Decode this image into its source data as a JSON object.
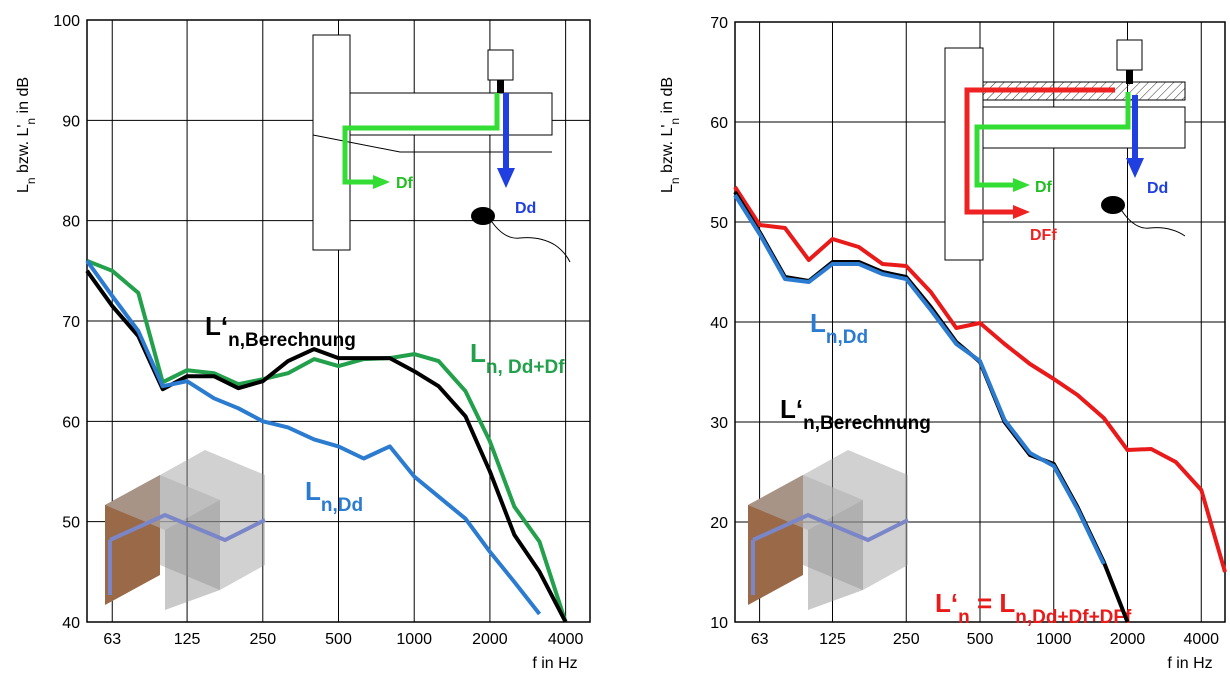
{
  "chart_data": [
    {
      "type": "line",
      "xscale": "log",
      "grid": true,
      "x": [
        50,
        63,
        80,
        100,
        125,
        160,
        200,
        250,
        315,
        400,
        500,
        630,
        800,
        1000,
        1250,
        1600,
        2000,
        2500,
        3150,
        4000
      ],
      "xlim": [
        50,
        5000
      ],
      "xticks": [
        63,
        125,
        250,
        500,
        1000,
        2000,
        4000
      ],
      "ylim": [
        40,
        100
      ],
      "yticks": [
        40,
        50,
        60,
        70,
        80,
        90,
        100
      ],
      "x_label": "f in Hz",
      "y_label": [
        "L",
        "n",
        "  bzw.  L'",
        "n",
        "  in dB"
      ],
      "series": [
        {
          "label": [
            "L",
            "n, Dd+Df"
          ],
          "color": "#22a04b",
          "values": [
            76,
            75,
            72.8,
            63.9,
            65.1,
            64.8,
            63.7,
            64.2,
            64.8,
            66.2,
            65.5,
            66.2,
            66.3,
            66.7,
            66,
            63,
            58,
            51.5,
            48,
            40
          ]
        },
        {
          "label": [
            "L‘",
            "n,Berechnung"
          ],
          "color": "#000000",
          "values": [
            75,
            71.5,
            68.5,
            63.2,
            64.5,
            64.5,
            63.3,
            64,
            66,
            67.2,
            66.3,
            66.3,
            66.3,
            65,
            63.5,
            60.5,
            55,
            48.7,
            45,
            40
          ]
        },
        {
          "label": [
            "L",
            "n,Dd"
          ],
          "color": "#2b7bd0",
          "values": [
            76,
            72.5,
            69,
            63.5,
            64,
            62.3,
            61.3,
            60,
            59.4,
            58.2,
            57.5,
            56.3,
            57.5,
            54.5,
            52.5,
            50.3,
            47,
            44,
            40.8,
            null
          ]
        }
      ],
      "inset": {
        "labels": [
          "Df",
          "Dd"
        ]
      }
    },
    {
      "type": "line",
      "xscale": "log",
      "grid": true,
      "x": [
        50,
        63,
        80,
        100,
        125,
        160,
        200,
        250,
        315,
        400,
        500,
        630,
        800,
        1000,
        1250,
        1600,
        2000,
        2500,
        3150,
        4000,
        5000
      ],
      "xlim": [
        50,
        5000
      ],
      "xticks": [
        63,
        125,
        250,
        500,
        1000,
        2000,
        4000
      ],
      "ylim": [
        10,
        70
      ],
      "yticks": [
        10,
        20,
        30,
        40,
        50,
        60,
        70
      ],
      "x_label": "f in Hz",
      "y_label": [
        "L",
        "n",
        "  bzw.  L'",
        "n",
        "  in dB"
      ],
      "series": [
        {
          "label": [
            "L‘",
            "n",
            " = L",
            "n,Dd+Df+DFf"
          ],
          "color": "#e81a1a",
          "values": [
            53.5,
            49.7,
            49.4,
            46.2,
            48.3,
            47.5,
            45.8,
            45.6,
            43,
            39.4,
            39.9,
            37.8,
            35.8,
            34.3,
            32.7,
            30.4,
            27.2,
            27.3,
            26,
            23.2,
            15
          ]
        },
        {
          "label": [
            "L‘",
            "n,Berechnung"
          ],
          "color": "#000000",
          "values": [
            53,
            49,
            44.5,
            44.1,
            46,
            46,
            45,
            44.5,
            41.5,
            38,
            36,
            30,
            26.7,
            25.8,
            21.5,
            16,
            10,
            null,
            null,
            null,
            null
          ]
        },
        {
          "label": [
            "L",
            "n,Dd"
          ],
          "color": "#2b7bd0",
          "values": [
            52.7,
            48.8,
            44.3,
            44,
            45.8,
            45.8,
            44.8,
            44.3,
            41.2,
            37.8,
            36.1,
            30.2,
            26.9,
            25.6,
            21.3,
            15.8,
            null,
            null,
            null,
            null,
            null
          ]
        }
      ],
      "inset": {
        "labels": [
          "Df",
          "Dd",
          "DFf"
        ]
      }
    }
  ]
}
